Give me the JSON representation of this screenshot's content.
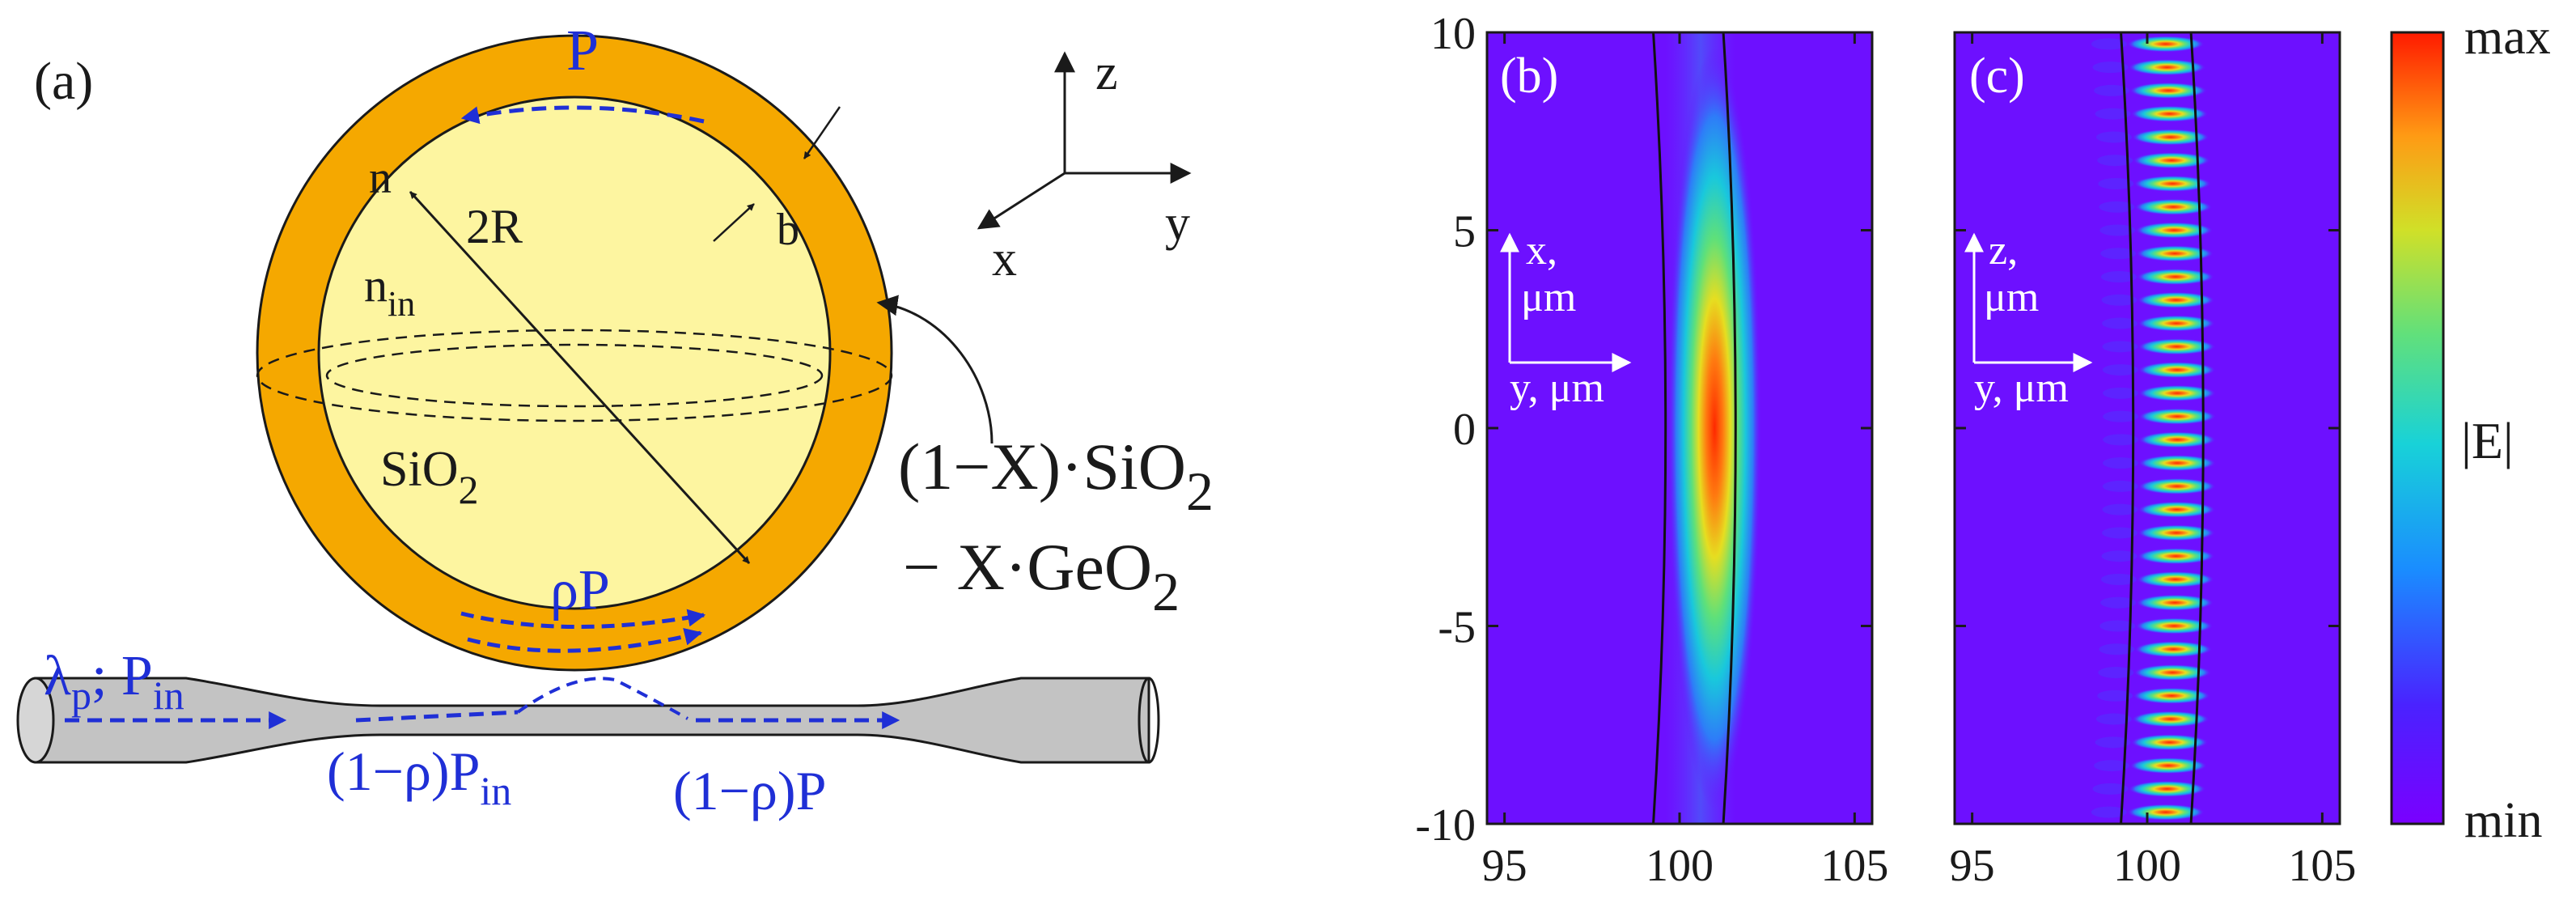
{
  "panel_a": {
    "label": "(a)",
    "P_top": "P",
    "n": "n",
    "two_R": "2R",
    "b": "b",
    "n_in": {
      "base": "n",
      "sub": "in"
    },
    "core_material": {
      "base": "SiO",
      "sub": "2"
    },
    "shell_material_line1": {
      "base": "(1−X)·SiO",
      "sub": "2"
    },
    "shell_material_line2": {
      "base": "− X·GeO",
      "sub": "2"
    },
    "rho_P": "ρP",
    "input": {
      "lambda": "λ",
      "lambda_sub": "p",
      "sep": "; P",
      "p_sub": "in"
    },
    "through_in": {
      "base": "(1−ρ)P",
      "sub": "in"
    },
    "through_out": "(1−ρ)P",
    "axes": {
      "z": "z",
      "y": "y",
      "x": "x"
    },
    "colors": {
      "shell": "#f5a800",
      "core": "#fdf5a0",
      "fiber": "#c3c3c3",
      "arrows": "#1f2fd6"
    }
  },
  "panel_b": {
    "label": "(b)",
    "axis_label_vertical_1": "x,",
    "axis_label_vertical_2": "μm",
    "axis_label_horizontal": "y, μm"
  },
  "panel_c": {
    "label": "(c)",
    "axis_label_vertical_1": "z,",
    "axis_label_vertical_2": "μm",
    "axis_label_horizontal": "y, μm"
  },
  "colorbar": {
    "max_label": "max",
    "min_label": "min",
    "title": "|E|"
  },
  "chart_data": [
    {
      "type": "heatmap",
      "title": "(b)",
      "xlabel": "y, μm",
      "ylabel": "x, μm",
      "xlim": [
        94.5,
        105.5
      ],
      "ylim": [
        -10,
        10
      ],
      "x_ticks": [
        "95",
        "100",
        "105"
      ],
      "y_ticks": [
        "10",
        "5",
        "0",
        "-5",
        "-10"
      ],
      "boundary_inner_y": 99.6,
      "boundary_outer_y": 101.6,
      "mode_center_y": 101.0,
      "mode_center_x": 0
    },
    {
      "type": "heatmap",
      "title": "(c)",
      "xlabel": "y, μm",
      "ylabel": "z, μm",
      "xlim": [
        94.5,
        105.5
      ],
      "ylim": [
        -10,
        10
      ],
      "x_ticks": [
        "95",
        "100",
        "105"
      ],
      "y_ticks": [
        "10",
        "5",
        "0",
        "-5",
        "-10"
      ],
      "boundary_inner_y": 99.6,
      "boundary_outer_y": 101.6,
      "fringe_count": 34
    }
  ]
}
